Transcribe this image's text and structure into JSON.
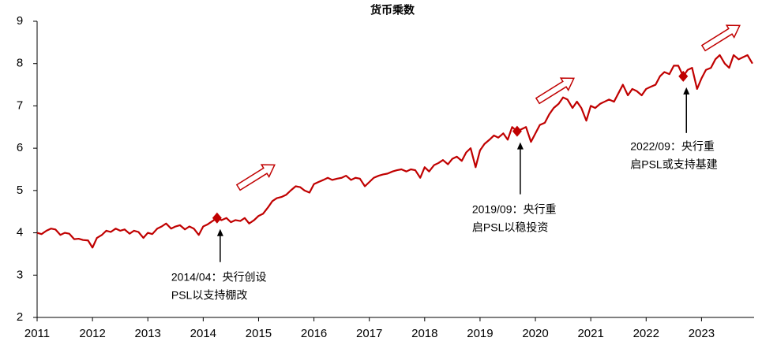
{
  "chart_data": {
    "type": "line",
    "title": "货币乘数",
    "color": "#c00000",
    "x": [
      2011.0,
      2011.08,
      2011.17,
      2011.25,
      2011.33,
      2011.42,
      2011.5,
      2011.58,
      2011.67,
      2011.75,
      2011.83,
      2011.92,
      2012.0,
      2012.08,
      2012.17,
      2012.25,
      2012.33,
      2012.42,
      2012.5,
      2012.58,
      2012.67,
      2012.75,
      2012.83,
      2012.92,
      2013.0,
      2013.08,
      2013.17,
      2013.25,
      2013.33,
      2013.42,
      2013.5,
      2013.58,
      2013.67,
      2013.75,
      2013.83,
      2013.92,
      2014.0,
      2014.08,
      2014.17,
      2014.25,
      2014.33,
      2014.42,
      2014.5,
      2014.58,
      2014.67,
      2014.75,
      2014.83,
      2014.92,
      2015.0,
      2015.08,
      2015.17,
      2015.25,
      2015.33,
      2015.42,
      2015.5,
      2015.58,
      2015.67,
      2015.75,
      2015.83,
      2015.92,
      2016.0,
      2016.08,
      2016.17,
      2016.25,
      2016.33,
      2016.42,
      2016.5,
      2016.58,
      2016.67,
      2016.75,
      2016.83,
      2016.92,
      2017.0,
      2017.08,
      2017.17,
      2017.25,
      2017.33,
      2017.42,
      2017.5,
      2017.58,
      2017.67,
      2017.75,
      2017.83,
      2017.92,
      2018.0,
      2018.08,
      2018.17,
      2018.25,
      2018.33,
      2018.42,
      2018.5,
      2018.58,
      2018.67,
      2018.75,
      2018.83,
      2018.92,
      2019.0,
      2019.08,
      2019.17,
      2019.25,
      2019.33,
      2019.42,
      2019.5,
      2019.58,
      2019.67,
      2019.75,
      2019.83,
      2019.92,
      2020.0,
      2020.08,
      2020.17,
      2020.25,
      2020.33,
      2020.42,
      2020.5,
      2020.58,
      2020.67,
      2020.75,
      2020.83,
      2020.92,
      2021.0,
      2021.08,
      2021.17,
      2021.25,
      2021.33,
      2021.42,
      2021.5,
      2021.58,
      2021.67,
      2021.75,
      2021.83,
      2021.92,
      2022.0,
      2022.08,
      2022.17,
      2022.25,
      2022.33,
      2022.42,
      2022.5,
      2022.58,
      2022.67,
      2022.75,
      2022.83,
      2022.92,
      2023.0,
      2023.08,
      2023.17,
      2023.25,
      2023.33,
      2023.42,
      2023.5,
      2023.58,
      2023.67,
      2023.75,
      2023.83,
      2023.92
    ],
    "values": [
      4.0,
      3.97,
      4.05,
      4.1,
      4.08,
      3.95,
      4.0,
      3.98,
      3.85,
      3.86,
      3.83,
      3.82,
      3.65,
      3.88,
      3.95,
      4.05,
      4.02,
      4.1,
      4.05,
      4.08,
      3.98,
      4.05,
      4.02,
      3.88,
      4.0,
      3.97,
      4.1,
      4.15,
      4.22,
      4.1,
      4.15,
      4.18,
      4.08,
      4.15,
      4.1,
      3.95,
      4.15,
      4.2,
      4.28,
      4.35,
      4.3,
      4.35,
      4.25,
      4.3,
      4.28,
      4.35,
      4.22,
      4.3,
      4.4,
      4.45,
      4.6,
      4.75,
      4.82,
      4.85,
      4.9,
      5.0,
      5.1,
      5.08,
      5.0,
      4.95,
      5.15,
      5.2,
      5.25,
      5.3,
      5.25,
      5.28,
      5.3,
      5.35,
      5.25,
      5.3,
      5.28,
      5.1,
      5.2,
      5.3,
      5.35,
      5.38,
      5.4,
      5.45,
      5.48,
      5.5,
      5.45,
      5.5,
      5.48,
      5.3,
      5.55,
      5.45,
      5.6,
      5.65,
      5.72,
      5.62,
      5.75,
      5.8,
      5.7,
      5.9,
      6.0,
      5.55,
      5.95,
      6.1,
      6.2,
      6.3,
      6.25,
      6.35,
      6.2,
      6.5,
      6.4,
      6.45,
      6.5,
      6.15,
      6.35,
      6.55,
      6.6,
      6.8,
      6.95,
      7.05,
      7.2,
      7.15,
      6.95,
      7.1,
      6.95,
      6.65,
      7.0,
      6.95,
      7.05,
      7.1,
      7.15,
      7.1,
      7.3,
      7.5,
      7.25,
      7.4,
      7.35,
      7.25,
      7.4,
      7.45,
      7.5,
      7.7,
      7.8,
      7.75,
      7.95,
      7.95,
      7.7,
      7.85,
      7.9,
      7.4,
      7.65,
      7.85,
      7.9,
      8.1,
      8.2,
      8.0,
      7.9,
      8.2,
      8.1,
      8.15,
      8.2,
      8.0
    ],
    "xlim": [
      2011,
      2023.95
    ],
    "xticks": [
      2011,
      2012,
      2013,
      2014,
      2015,
      2016,
      2017,
      2018,
      2019,
      2020,
      2021,
      2022,
      2023
    ],
    "ylim": [
      2,
      9
    ],
    "yticks": [
      2,
      3,
      4,
      5,
      6,
      7,
      8,
      9
    ],
    "markers": [
      {
        "x": 2014.25,
        "y": 4.35,
        "label": [
          "2014/04：央行创设",
          "PSL以支持棚改"
        ]
      },
      {
        "x": 2019.67,
        "y": 6.4,
        "label": [
          "2019/09：央行重",
          "启PSL以稳投资"
        ]
      },
      {
        "x": 2022.67,
        "y": 7.7,
        "label": [
          "2022/09：央行重",
          "启PSL或支持基建"
        ]
      }
    ]
  }
}
